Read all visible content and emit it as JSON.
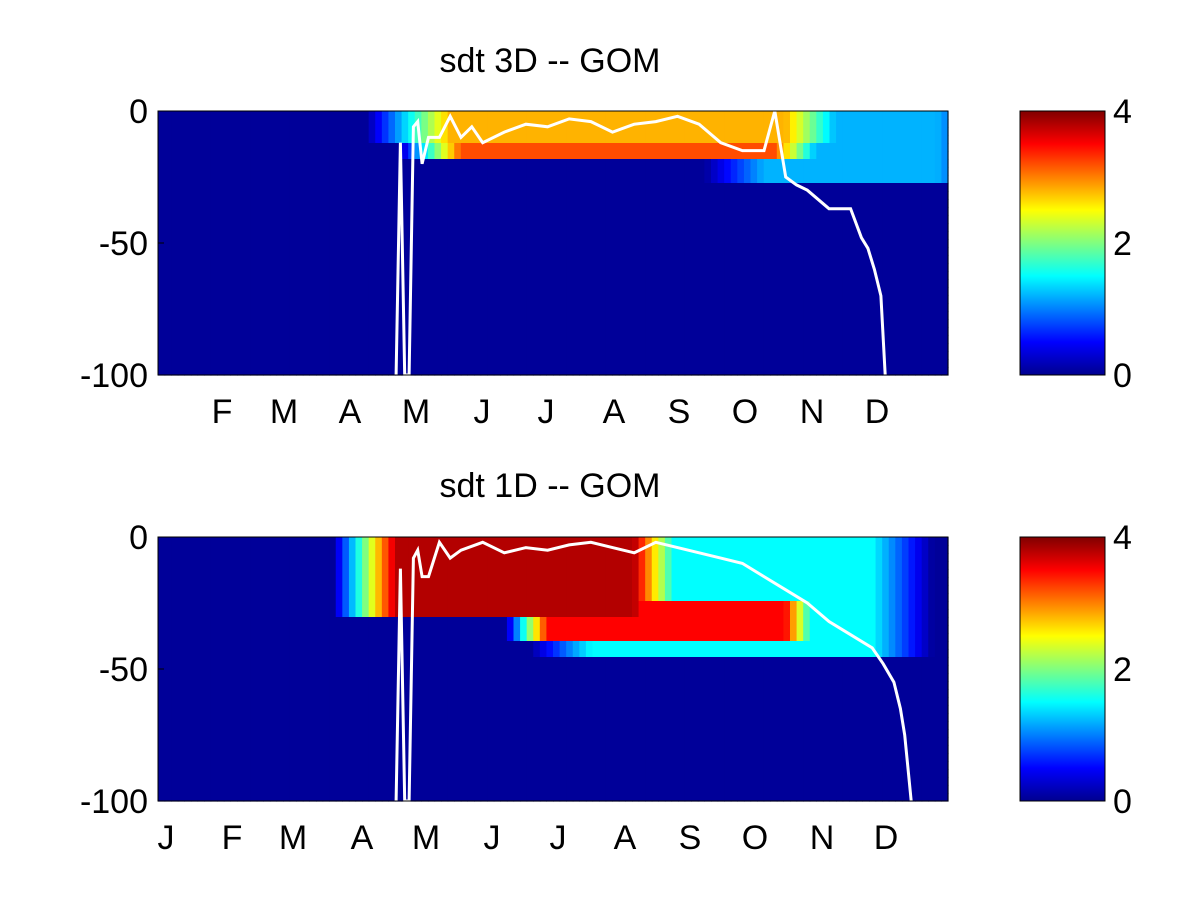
{
  "chart_data": [
    {
      "type": "heatmap",
      "title": "sdt 3D   -- GOM",
      "xlabel": "",
      "ylabel": "",
      "x_ticks": [
        "F",
        "M",
        "A",
        "M",
        "J",
        "J",
        "A",
        "S",
        "O",
        "N",
        "D"
      ],
      "y_ticks": [
        "0",
        "-50",
        "-100"
      ],
      "ylim": [
        -100,
        0
      ],
      "colorbar": {
        "colormap": "jet",
        "range": [
          0,
          4
        ],
        "ticks": [
          "0",
          "2",
          "4"
        ]
      },
      "grid": false,
      "field_features": [
        {
          "day_start": 135,
          "day_end": 290,
          "depth_top": 0,
          "depth_bottom": -12,
          "value": 2.8,
          "decay_days": 40
        },
        {
          "day_start": 140,
          "day_end": 285,
          "depth_top": -12,
          "depth_bottom": -18,
          "value": 3.2,
          "decay_days": 30
        },
        {
          "day_start": 280,
          "day_end": 360,
          "depth_top": 0,
          "depth_bottom": -28,
          "value": 1.2,
          "decay_days": 30
        }
      ],
      "overlay_line": {
        "color": "#ffffff",
        "x_day": [
          110,
          112,
          114,
          116,
          118,
          120,
          122,
          125,
          130,
          135,
          140,
          145,
          150,
          160,
          170,
          180,
          190,
          200,
          210,
          220,
          230,
          240,
          250,
          260,
          270,
          280,
          285,
          290,
          295,
          300,
          310,
          320,
          325,
          328,
          331,
          334,
          336
        ],
        "y": [
          -100,
          -12,
          -100,
          -100,
          -6,
          -4,
          -20,
          -10,
          -10,
          -2,
          -10,
          -6,
          -12,
          -8,
          -5,
          -6,
          -3,
          -4,
          -8,
          -5,
          -4,
          -2,
          -5,
          -12,
          -15,
          -15,
          0,
          -25,
          -28,
          -30,
          -37,
          -37,
          -48,
          -52,
          -60,
          -70,
          -100
        ]
      }
    },
    {
      "type": "heatmap",
      "title": "sdt 1D   -- GOM",
      "xlabel": "",
      "ylabel": "",
      "x_ticks": [
        "J",
        "F",
        "M",
        "A",
        "M",
        "J",
        "J",
        "A",
        "S",
        "O",
        "N",
        "D"
      ],
      "y_ticks": [
        "0",
        "-50",
        "-100"
      ],
      "ylim": [
        -100,
        0
      ],
      "colorbar": {
        "colormap": "jet",
        "range": [
          0,
          4
        ],
        "ticks": [
          "0",
          "2",
          "4"
        ]
      },
      "grid": false,
      "field_features": [
        {
          "day_start": 110,
          "day_end": 220,
          "depth_top": 0,
          "depth_bottom": -30,
          "value": 3.8,
          "decay_days": 30
        },
        {
          "day_start": 180,
          "day_end": 290,
          "depth_top": -25,
          "depth_bottom": -40,
          "value": 3.5,
          "decay_days": 20
        },
        {
          "day_start": 200,
          "day_end": 330,
          "depth_top": 0,
          "depth_bottom": -45,
          "value": 1.5,
          "decay_days": 30
        }
      ],
      "overlay_line": {
        "color": "#ffffff",
        "x_day": [
          110,
          112,
          114,
          116,
          118,
          120,
          122,
          125,
          130,
          135,
          140,
          150,
          160,
          170,
          180,
          190,
          200,
          210,
          220,
          230,
          240,
          250,
          260,
          270,
          280,
          290,
          300,
          310,
          320,
          330,
          335,
          340,
          343,
          345,
          348
        ],
        "y": [
          -100,
          -12,
          -100,
          -100,
          -8,
          -5,
          -15,
          -15,
          -2,
          -8,
          -5,
          -2,
          -6,
          -4,
          -5,
          -3,
          -2,
          -4,
          -6,
          -2,
          -4,
          -6,
          -8,
          -10,
          -15,
          -20,
          -25,
          -32,
          -37,
          -42,
          -48,
          -55,
          -65,
          -75,
          -100
        ]
      }
    }
  ]
}
